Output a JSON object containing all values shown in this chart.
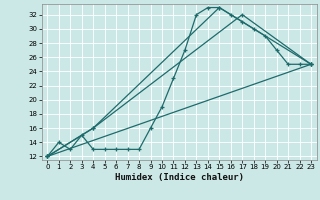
{
  "xlabel": "Humidex (Indice chaleur)",
  "background_color": "#cbe8e7",
  "grid_color": "#ffffff",
  "line_color": "#1e6b6b",
  "xlim": [
    -0.5,
    23.5
  ],
  "ylim": [
    11.5,
    33.5
  ],
  "yticks": [
    12,
    14,
    16,
    18,
    20,
    22,
    24,
    26,
    28,
    30,
    32
  ],
  "xticks": [
    0,
    1,
    2,
    3,
    4,
    5,
    6,
    7,
    8,
    9,
    10,
    11,
    12,
    13,
    14,
    15,
    16,
    17,
    18,
    19,
    20,
    21,
    22,
    23
  ],
  "series1_x": [
    0,
    1,
    2,
    3,
    4,
    5,
    6,
    7,
    8,
    9,
    10,
    11,
    12,
    13,
    14,
    15,
    16,
    17,
    18,
    19,
    20,
    21,
    22,
    23
  ],
  "series1_y": [
    12,
    14,
    13,
    15,
    13,
    13,
    13,
    13,
    13,
    16,
    19,
    23,
    27,
    32,
    33,
    33,
    32,
    31,
    30,
    29,
    27,
    25,
    25,
    25
  ],
  "series2_x": [
    0,
    4,
    15,
    23
  ],
  "series2_y": [
    12,
    16,
    33,
    25
  ],
  "series3_x": [
    0,
    4,
    17,
    23
  ],
  "series3_y": [
    12,
    16,
    32,
    25
  ],
  "series4_x": [
    0,
    23
  ],
  "series4_y": [
    12,
    25
  ]
}
